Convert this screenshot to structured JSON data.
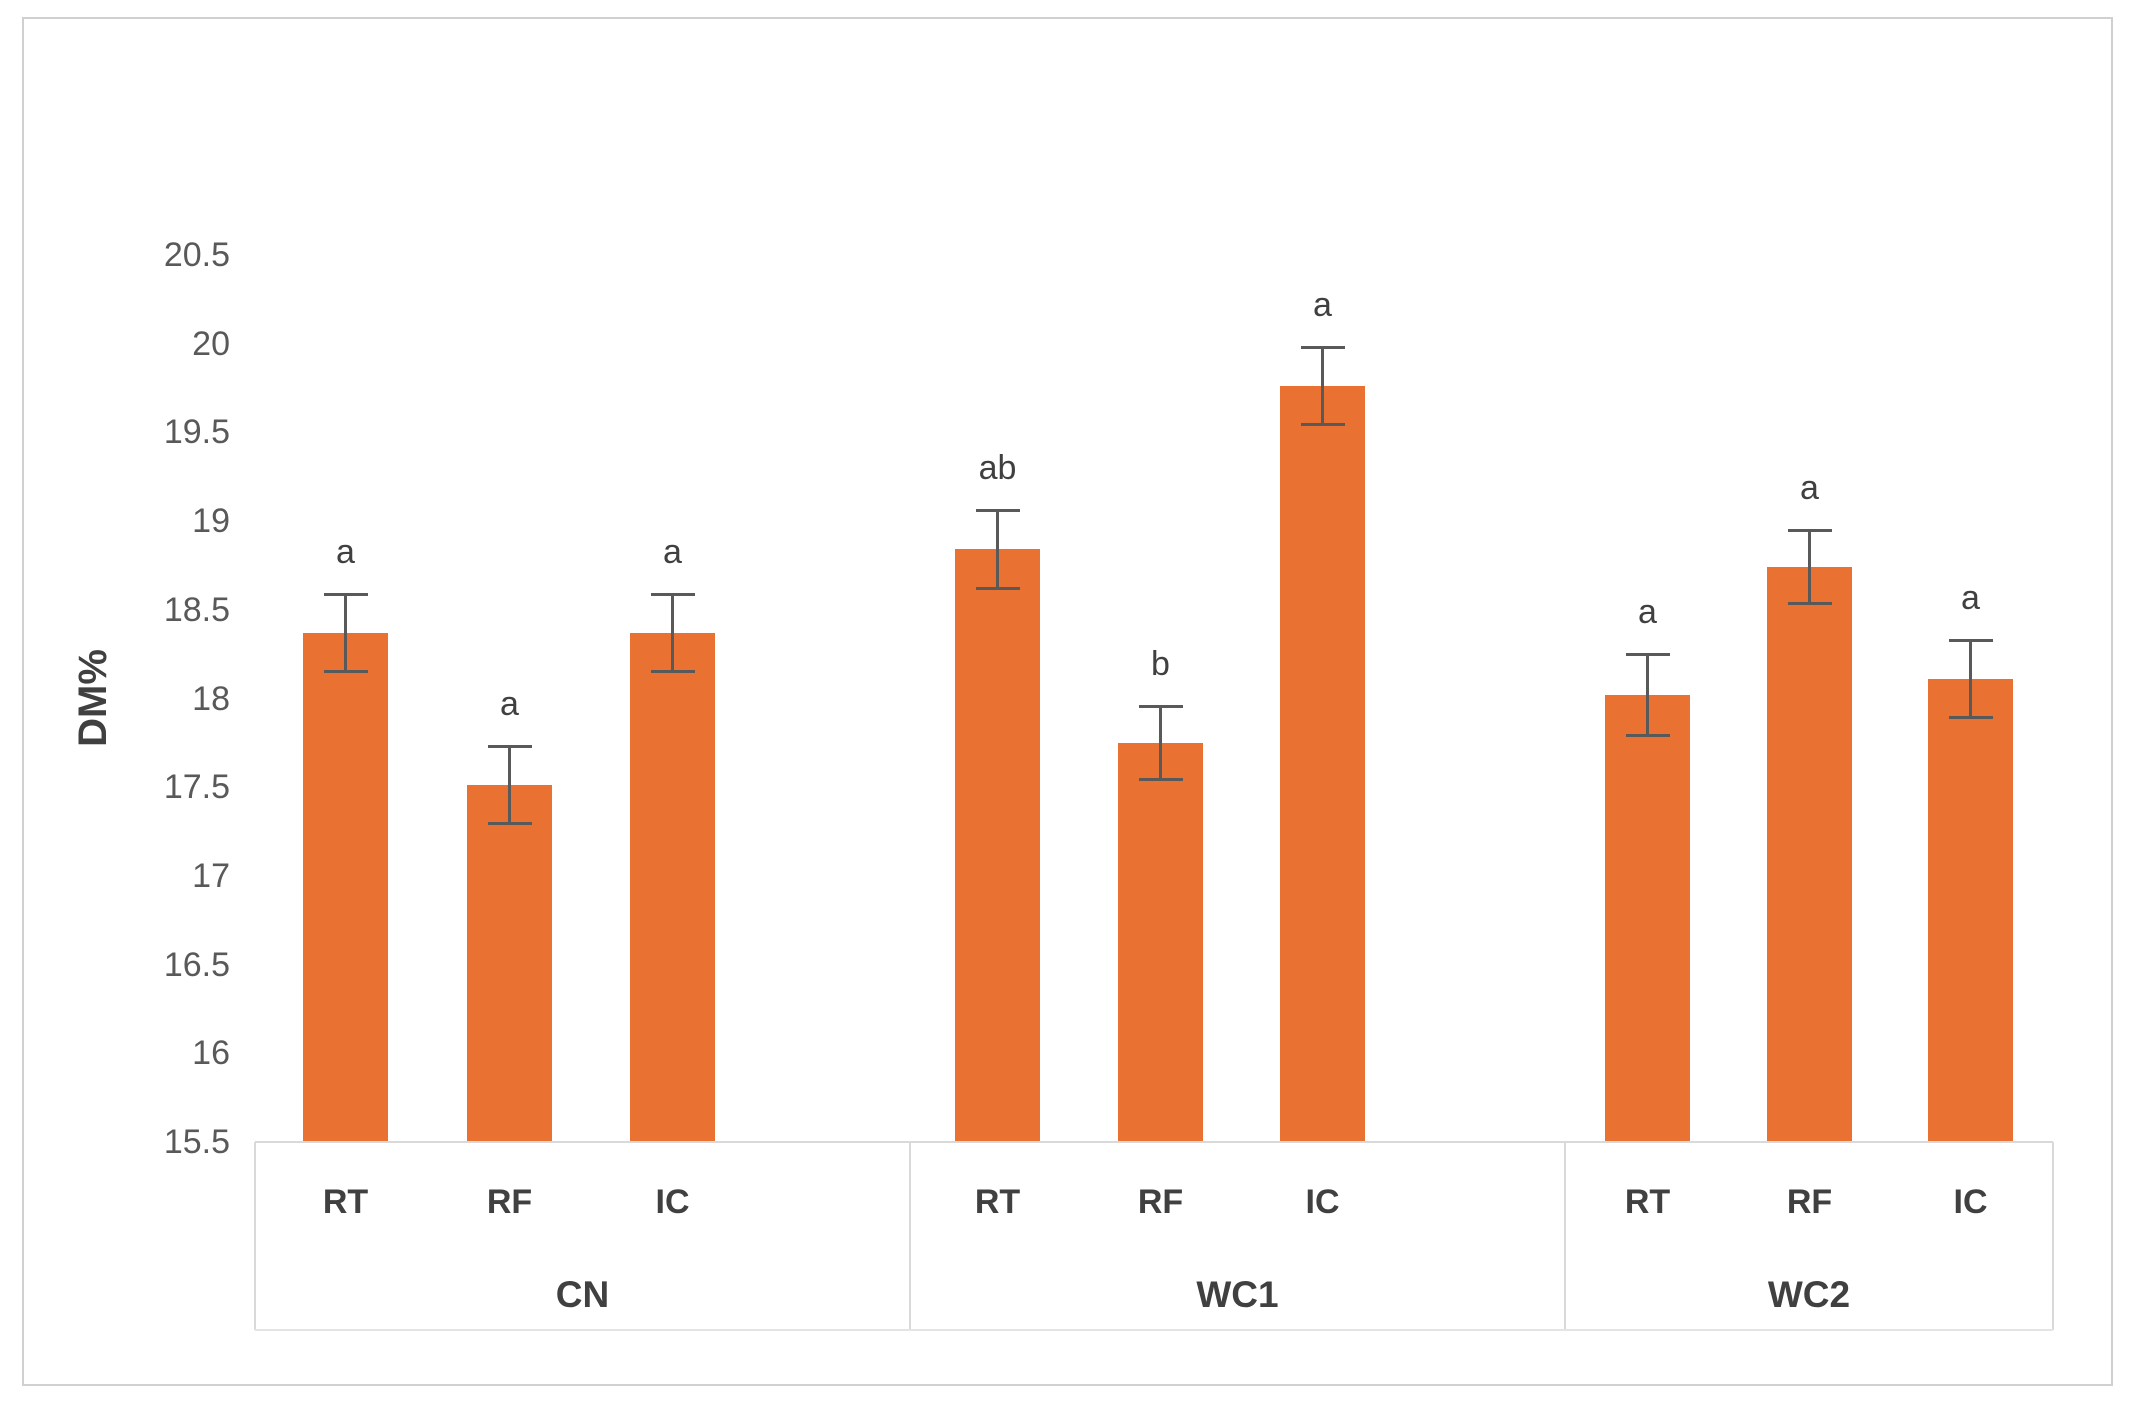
{
  "chart_data": {
    "type": "bar",
    "title": "",
    "xlabel": "",
    "ylabel": "DM%",
    "grid": false,
    "legend": null,
    "y_axis": {
      "min": 15.5,
      "max": 20.5,
      "step": 0.5,
      "ticks": [
        "20.5",
        "20",
        "19.5",
        "19",
        "18.5",
        "18",
        "17.5",
        "17",
        "16.5",
        "16",
        "15.5"
      ]
    },
    "colors": {
      "bar": "#E97132",
      "error_bar": "#595959",
      "sig_letter": "#404040",
      "tick_label": "#595959",
      "axis_line": "#D9D9D9",
      "category_label": "#404040"
    },
    "groups": [
      {
        "name": "CN",
        "bars": [
          {
            "label": "RT",
            "value": 18.37,
            "error": 0.22,
            "sig": "a"
          },
          {
            "label": "RF",
            "value": 17.51,
            "error": 0.22,
            "sig": "a"
          },
          {
            "label": "IC",
            "value": 18.37,
            "error": 0.22,
            "sig": "a"
          }
        ]
      },
      {
        "name": "WC1",
        "bars": [
          {
            "label": "RT",
            "value": 18.84,
            "error": 0.22,
            "sig": "ab"
          },
          {
            "label": "RF",
            "value": 17.75,
            "error": 0.21,
            "sig": "b"
          },
          {
            "label": "IC",
            "value": 19.76,
            "error": 0.22,
            "sig": "a"
          }
        ]
      },
      {
        "name": "WC2",
        "bars": [
          {
            "label": "RT",
            "value": 18.02,
            "error": 0.23,
            "sig": "a"
          },
          {
            "label": "RF",
            "value": 18.74,
            "error": 0.21,
            "sig": "a"
          },
          {
            "label": "IC",
            "value": 18.11,
            "error": 0.22,
            "sig": "a"
          }
        ]
      }
    ]
  }
}
